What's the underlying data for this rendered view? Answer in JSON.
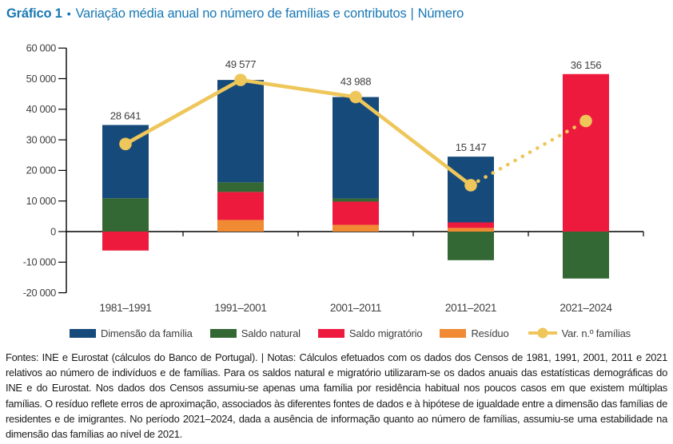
{
  "header": {
    "figure_label": "Gráfico 1",
    "separator": "•",
    "title": "Variação média anual no número de famílias e contributos",
    "unit_separator": "|",
    "unit_suffix": "Número",
    "title_color": "#1878b4"
  },
  "chart_data": {
    "type": "bar",
    "subtype": "stacked-bar-with-line",
    "title": "Variação média anual no número de famílias e contributos",
    "unit": "Número",
    "categories": [
      "1981–1991",
      "1991–2001",
      "2001–2011",
      "2011–2021",
      "2021–2024"
    ],
    "series": [
      {
        "name": "Dimensão da família",
        "color": "#164a7b",
        "values": [
          23950,
          33477,
          33128,
          21500,
          0
        ]
      },
      {
        "name": "Saldo natural",
        "color": "#336733",
        "values": [
          10900,
          3150,
          1060,
          -9350,
          -15350
        ]
      },
      {
        "name": "Saldo migratório",
        "color": "#ee1a3e",
        "values": [
          -6200,
          9150,
          7600,
          1800,
          51500
        ]
      },
      {
        "name": "Resíduo",
        "color": "#f08a33",
        "values": [
          0,
          3800,
          2200,
          1200,
          0
        ]
      }
    ],
    "stack_order": [
      3,
      2,
      1,
      0
    ],
    "line_series": {
      "name": "Var. n.º famílias",
      "color": "#eec65a",
      "values": [
        28641,
        49577,
        43988,
        15147,
        36156
      ],
      "dotted_segment_start_index": 3
    },
    "total_labels": [
      "28 641",
      "49 577",
      "43 988",
      "15 147",
      "36 156"
    ],
    "y_axis": {
      "min": -20000,
      "max": 60000,
      "tick_step": 10000,
      "tick_values": [
        60000,
        50000,
        40000,
        30000,
        20000,
        10000,
        0,
        -10000,
        -20000
      ],
      "tick_labels": [
        "60 000",
        "50 000",
        "40 000",
        "30 000",
        "20 000",
        "10 000",
        "0",
        "-10 000",
        "-20 000"
      ]
    },
    "grid": false,
    "legend_position": "bottom",
    "axis_color": "#000000",
    "label_color": "#3f3f3f"
  },
  "footer": {
    "notes": "Fontes: INE e Eurostat (cálculos do Banco de Portugal).  |  Notas: Cálculos efetuados com os dados dos Censos de 1981, 1991, 2001, 2011 e 2021 relativos ao número de indivíduos e de famílias. Para os saldos natural e migratório utilizaram-se os dados anuais das estatísticas demográficas do INE e do Eurostat. Nos dados dos Censos assumiu-se apenas uma família por residência habitual nos poucos casos em que existem múltiplas famílias. O resíduo reflete erros de aproximação, associados às diferentes fontes de dados e à hipótese de igualdade entre a dimensão das famílias de residentes e de imigrantes. No período 2021–2024, dada a ausência de informação quanto ao número de famílias, assumiu-se uma estabilidade na dimensão das famílias ao nível de 2021."
  }
}
